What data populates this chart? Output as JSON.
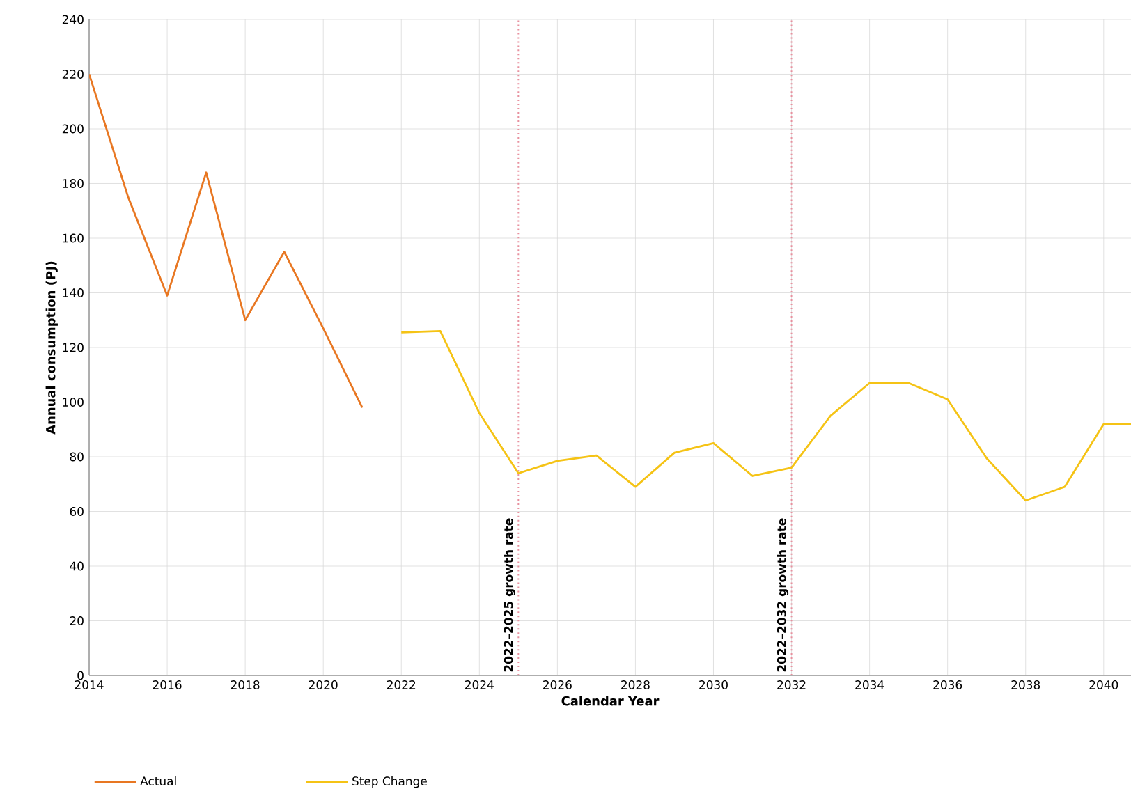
{
  "chart_data": {
    "type": "line",
    "xlabel": "Calendar Year",
    "ylabel": "Annual consumption (PJ)",
    "xlim": [
      2014,
      2040.7
    ],
    "xticks": [
      2014,
      2016,
      2018,
      2020,
      2022,
      2024,
      2026,
      2028,
      2030,
      2032,
      2034,
      2036,
      2038,
      2040
    ],
    "ylim": [
      0,
      240
    ],
    "yticks": [
      0,
      20,
      40,
      60,
      80,
      100,
      120,
      140,
      160,
      180,
      200,
      220,
      240
    ],
    "series": [
      {
        "name": "Actual",
        "color": "#e87722",
        "x": [
          2014,
          2015,
          2016,
          2017,
          2018,
          2019,
          2020,
          2021
        ],
        "values": [
          220,
          175,
          139,
          184,
          130,
          155,
          127,
          98
        ]
      },
      {
        "name": "Step Change",
        "color": "#f5c315",
        "x": [
          2022,
          2023,
          2024,
          2025,
          2026,
          2027,
          2028,
          2029,
          2030,
          2031,
          2032,
          2033,
          2034,
          2035,
          2036,
          2037,
          2038,
          2039,
          2040,
          2040.7
        ],
        "values": [
          125.5,
          126,
          96,
          74,
          78.5,
          80.5,
          69,
          81.5,
          85,
          73,
          76,
          95,
          107,
          107,
          101,
          79.5,
          64,
          69,
          92,
          92
        ]
      }
    ],
    "ref_lines": [
      {
        "axis": "x",
        "value": 2025,
        "label": "2022–2025 growth rate",
        "color": "#e8909e",
        "line_style": "dotted"
      },
      {
        "axis": "x",
        "value": 2032,
        "label": "2022–2032 growth rate",
        "color": "#e8909e",
        "line_style": "dotted"
      }
    ],
    "grid": true,
    "legend": "bottom",
    "marker": "none",
    "line_style": "solid"
  }
}
